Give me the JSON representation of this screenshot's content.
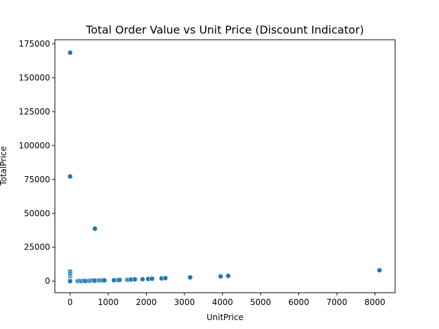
{
  "chart_data": {
    "type": "scatter",
    "title": "Total Order Value vs Unit Price (Discount Indicator)",
    "xlabel": "UnitPrice",
    "ylabel": "TotalPrice",
    "xlim": [
      -400,
      8530
    ],
    "ylim": [
      -8500,
      178000
    ],
    "xticks": [
      0,
      1000,
      2000,
      3000,
      4000,
      5000,
      6000,
      7000,
      8000
    ],
    "yticks": [
      0,
      25000,
      50000,
      75000,
      100000,
      125000,
      150000,
      175000
    ],
    "grid": false,
    "point_color": "#1f77b4",
    "series": [
      {
        "points": [
          {
            "x": 0,
            "y": 168500
          },
          {
            "x": 0,
            "y": 77200
          },
          {
            "x": 650,
            "y": 38700
          },
          {
            "x": 0,
            "y": 7000
          },
          {
            "x": 0,
            "y": 5500
          },
          {
            "x": 0,
            "y": 4000
          },
          {
            "x": 0,
            "y": 2800
          },
          {
            "x": 0,
            "y": 1800
          },
          {
            "x": 0,
            "y": 900
          },
          {
            "x": 0,
            "y": 200
          },
          {
            "x": 0,
            "y": 0
          },
          {
            "x": 200,
            "y": 0
          },
          {
            "x": 250,
            "y": 150
          },
          {
            "x": 300,
            "y": 0
          },
          {
            "x": 350,
            "y": 200
          },
          {
            "x": 400,
            "y": 100
          },
          {
            "x": 500,
            "y": 300
          },
          {
            "x": 550,
            "y": 400
          },
          {
            "x": 600,
            "y": 500
          },
          {
            "x": 650,
            "y": 400
          },
          {
            "x": 750,
            "y": 500
          },
          {
            "x": 800,
            "y": 600
          },
          {
            "x": 850,
            "y": 500
          },
          {
            "x": 900,
            "y": 600
          },
          {
            "x": 1150,
            "y": 700
          },
          {
            "x": 1250,
            "y": 800
          },
          {
            "x": 1300,
            "y": 900
          },
          {
            "x": 1500,
            "y": 1000
          },
          {
            "x": 1550,
            "y": 1100
          },
          {
            "x": 1600,
            "y": 1200
          },
          {
            "x": 1700,
            "y": 1300
          },
          {
            "x": 1900,
            "y": 1400
          },
          {
            "x": 2050,
            "y": 1600
          },
          {
            "x": 2150,
            "y": 1800
          },
          {
            "x": 2400,
            "y": 2000
          },
          {
            "x": 2500,
            "y": 2200
          },
          {
            "x": 3150,
            "y": 2800
          },
          {
            "x": 3950,
            "y": 3500
          },
          {
            "x": 4150,
            "y": 3900
          },
          {
            "x": 8120,
            "y": 8000
          }
        ]
      }
    ]
  }
}
